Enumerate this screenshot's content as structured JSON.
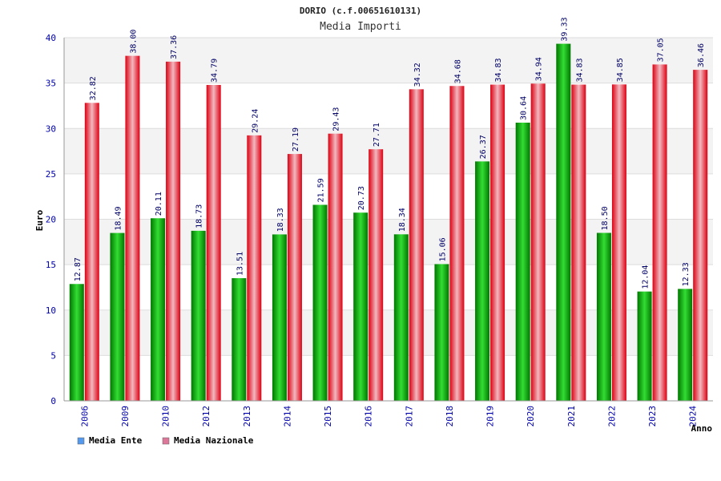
{
  "chart_data": {
    "type": "bar",
    "title": "DORIO (c.f.00651610131)",
    "subtitle": "Media Importi",
    "xlabel": "Anno",
    "ylabel": "Euro",
    "ylim": [
      0,
      40
    ],
    "yticks": [
      "0",
      "5",
      "10",
      "15",
      "20",
      "25",
      "30",
      "35",
      "40"
    ],
    "categories": [
      "2006",
      "2009",
      "2010",
      "2012",
      "2013",
      "2014",
      "2015",
      "2016",
      "2017",
      "2018",
      "2019",
      "2020",
      "2021",
      "2022",
      "2023",
      "2024"
    ],
    "series": [
      {
        "name": "Media Ente",
        "color": "#00aa00",
        "legend_color": "#5599ee",
        "values": [
          12.87,
          18.49,
          20.11,
          18.73,
          13.51,
          18.33,
          21.59,
          20.73,
          18.34,
          15.06,
          26.37,
          30.64,
          39.33,
          18.5,
          12.04,
          12.33
        ],
        "labels": [
          "12.87",
          "18.49",
          "20.11",
          "18.73",
          "13.51",
          "18.33",
          "21.59",
          "20.73",
          "18.34",
          "15.06",
          "26.37",
          "30.64",
          "39.33",
          "18.50",
          "12.04",
          "12.33"
        ]
      },
      {
        "name": "Media Nazionale",
        "color": "#ee1122",
        "legend_color": "#dd7799",
        "values": [
          32.82,
          38.0,
          37.36,
          34.79,
          29.24,
          27.19,
          29.43,
          27.71,
          34.32,
          34.68,
          34.83,
          34.94,
          34.83,
          34.85,
          37.05,
          36.46
        ],
        "labels": [
          "32.82",
          "38.00",
          "37.36",
          "34.79",
          "29.24",
          "27.19",
          "29.43",
          "27.71",
          "34.32",
          "34.68",
          "34.83",
          "34.94",
          "34.83",
          "34.85",
          "37.05",
          "36.46"
        ]
      }
    ],
    "grid": true,
    "legend_position": "bottom-left"
  }
}
